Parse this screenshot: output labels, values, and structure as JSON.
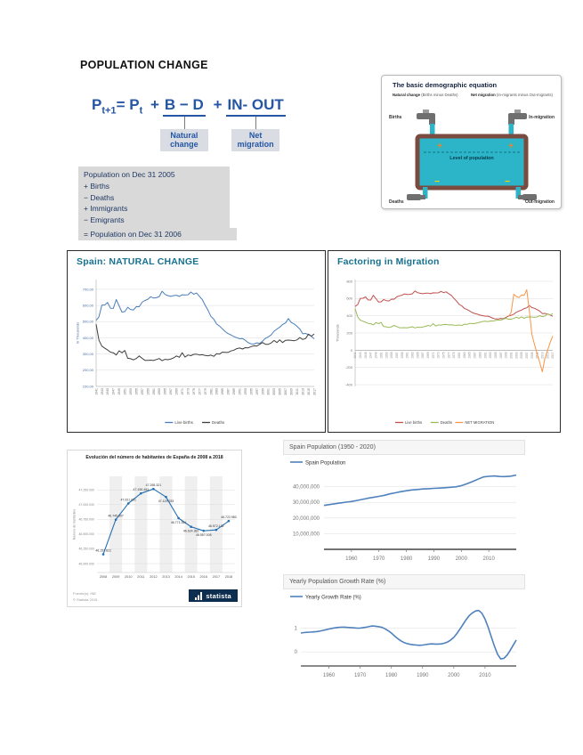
{
  "page": {
    "title": "POPULATION CHANGE"
  },
  "colors": {
    "formula_blue": "#2456a4",
    "box_bg": "#d9d9d9",
    "box_text": "#1f3864",
    "panel_title_teal": "#17718f",
    "water_cyan": "#2cb5c8",
    "tub_brown": "#7b4b40",
    "plus_orange": "#f5821f",
    "minus_yellow": "#ffd800",
    "statista_navy": "#0d2e4e"
  },
  "formula": {
    "p1": "P",
    "sub1": "t+1",
    "eq": "= P",
    "sub2": "t",
    "plus1": "+",
    "bd": "B − D",
    "plus2": "+",
    "inout": "IN- OUT",
    "callout_natural": "Natural change",
    "callout_net": "Net migration"
  },
  "accounting": {
    "lines": [
      "Population on Dec 31 2005",
      "+ Births",
      "− Deaths",
      "+ Immigrants",
      "− Emigrants"
    ],
    "result": "= Population on Dec 31 2006"
  },
  "equation_panel": {
    "title": "The basic demographic equation",
    "natural_bold": "Natural change",
    "natural_rest": "(Births minus Deaths)",
    "net_bold": "Net migration",
    "net_rest": "(In-migrants minus Out-migrants)",
    "births": "Births",
    "in_migration": "In-migration",
    "deaths": "Deaths",
    "out_migration": "Out-migration",
    "level": "Level of population",
    "plus": "+",
    "minus": "−"
  },
  "chart_data": [
    {
      "id": "spain-natural-change",
      "type": "line",
      "title": "Spain: NATURAL CHANGE",
      "ylabel": "In Thousands",
      "x_start": 1941,
      "xtick_start": 1941,
      "xtick_end": 2017,
      "xtick_step": 2,
      "ylim": [
        100,
        760
      ],
      "ytick_values": [
        700,
        600,
        500,
        400,
        300,
        200,
        100
      ],
      "ytick_labels": [
        "700,00",
        "600,00",
        "500,00",
        "400,00",
        "300,00",
        "200,00",
        "100,00"
      ],
      "series": [
        {
          "name": "Live births",
          "color": "#4a7ebb",
          "values": [
            508,
            530,
            602,
            603,
            618,
            583,
            582,
            637,
            598,
            559,
            562,
            589,
            575,
            572,
            593,
            592,
            620,
            631,
            638,
            654,
            646,
            648,
            655,
            688,
            668,
            661,
            656,
            661,
            663,
            656,
            666,
            665,
            666,
            683,
            669,
            677,
            656,
            636,
            601,
            571,
            533,
            515,
            485,
            473,
            456,
            438,
            426,
            418,
            408,
            401,
            395,
            396,
            385,
            370,
            363,
            362,
            369,
            365,
            380,
            397,
            406,
            418,
            441,
            454,
            466,
            483,
            492,
            519,
            495,
            486,
            471,
            454,
            425,
            427,
            420,
            410,
            393
          ]
        },
        {
          "name": "Deaths",
          "color": "#3f3f3f",
          "values": [
            484,
            385,
            349,
            336,
            325,
            312,
            308,
            294,
            320,
            308,
            322,
            274,
            271,
            264,
            272,
            288,
            274,
            261,
            261,
            262,
            260,
            266,
            272,
            259,
            267,
            265,
            269,
            276,
            288,
            280,
            308,
            281,
            294,
            290,
            298,
            299,
            294,
            296,
            291,
            289,
            293,
            286,
            302,
            299,
            312,
            310,
            310,
            319,
            324,
            333,
            337,
            331,
            339,
            338,
            346,
            351,
            349,
            360,
            371,
            360,
            360,
            368,
            384,
            371,
            387,
            371,
            385,
            386,
            385,
            382,
            387,
            402,
            390,
            396,
            423,
            410,
            424
          ]
        }
      ]
    },
    {
      "id": "factoring-migration",
      "type": "line",
      "title": "Factoring in Migration",
      "ylabel": "Thousands",
      "x_start": 1941,
      "xtick_start": 1941,
      "xtick_end": 2017,
      "xtick_step": 2,
      "ylim": [
        -420,
        820
      ],
      "ytick_values": [
        800,
        600,
        400,
        200,
        0,
        -200,
        -400
      ],
      "ytick_labels": [
        "800",
        "600",
        "400",
        "200",
        "0",
        "-200",
        "-400"
      ],
      "series": [
        {
          "name": "Live births",
          "color": "#c0504d",
          "values": [
            508,
            530,
            602,
            603,
            618,
            583,
            582,
            637,
            598,
            559,
            562,
            589,
            575,
            572,
            593,
            592,
            620,
            631,
            638,
            654,
            646,
            648,
            655,
            688,
            668,
            661,
            656,
            661,
            663,
            656,
            666,
            665,
            666,
            683,
            669,
            677,
            656,
            636,
            601,
            571,
            533,
            515,
            485,
            473,
            456,
            438,
            426,
            418,
            408,
            401,
            395,
            396,
            385,
            370,
            363,
            362,
            369,
            365,
            380,
            397,
            406,
            418,
            441,
            454,
            466,
            483,
            492,
            519,
            495,
            486,
            471,
            454,
            425,
            427,
            420,
            410,
            393
          ]
        },
        {
          "name": "Deaths",
          "color": "#9bbb59",
          "values": [
            484,
            385,
            349,
            336,
            325,
            312,
            308,
            294,
            320,
            308,
            322,
            274,
            271,
            264,
            272,
            288,
            274,
            261,
            261,
            262,
            260,
            266,
            272,
            259,
            267,
            265,
            269,
            276,
            288,
            280,
            308,
            281,
            294,
            290,
            298,
            299,
            294,
            296,
            291,
            289,
            293,
            286,
            302,
            299,
            312,
            310,
            310,
            319,
            324,
            333,
            337,
            331,
            339,
            338,
            346,
            351,
            349,
            360,
            371,
            360,
            360,
            368,
            384,
            371,
            387,
            371,
            385,
            386,
            385,
            382,
            387,
            402,
            390,
            396,
            423,
            410,
            424
          ]
        },
        {
          "name": "NET MIGRATION",
          "color": "#f79646",
          "x": [
            2000,
            2001,
            2002,
            2003,
            2004,
            2005,
            2006,
            2007,
            2008,
            2009,
            2010,
            2011,
            2012,
            2013,
            2014,
            2015,
            2016,
            2017
          ],
          "values": [
            390,
            441,
            649,
            625,
            610,
            641,
            636,
            702,
            460,
            181,
            63,
            -42,
            -142,
            -251,
            -95,
            -2,
            89,
            165
          ]
        }
      ]
    },
    {
      "id": "statista-population",
      "type": "line",
      "title": "Evolución del número de habitantes de España de 2008 a 2018",
      "ylabel": "Número de habitantes",
      "categories": [
        "2008",
        "2009",
        "2010",
        "2011",
        "2012",
        "2013",
        "2014",
        "2015",
        "2016",
        "2017",
        "2018"
      ],
      "values": [
        46157822,
        46745807,
        47021031,
        47190493,
        47265321,
        47129783,
        46771341,
        46624382,
        46557008,
        46572132,
        46722980
      ],
      "point_labels": [
        "46.157.822",
        "46.745.807",
        "47.021.031",
        "47.190.493",
        "47.265.321",
        "47.129.783",
        "46.771.341",
        "46.624.382",
        "46.557.008",
        "46.572.132",
        "46.722.980"
      ],
      "line_color": "#2470b3",
      "ylim": [
        45850000,
        47480000
      ],
      "ytick_values": [
        47250000,
        47000000,
        46750000,
        46500000,
        46250000,
        46000000
      ],
      "ytick_labels": [
        "47.250.000",
        "47.000.000",
        "46.750.000",
        "46.500.000",
        "46.250.000",
        "46.000.000"
      ],
      "source": "Fuente(s): INE",
      "copyright": "© Statista 2019",
      "brand": "statista"
    },
    {
      "id": "spain-population",
      "type": "line",
      "title": "Spain Population (1950 - 2020)",
      "legend": "Spain Population",
      "line_color": "#4f81bd",
      "x_start": 1950,
      "x_step": 2,
      "values_millions": [
        28.0,
        28.6,
        29.1,
        29.6,
        30.1,
        30.5,
        31.2,
        31.9,
        32.6,
        33.2,
        33.8,
        34.5,
        35.4,
        36.1,
        36.8,
        37.4,
        37.9,
        38.2,
        38.5,
        38.7,
        38.9,
        39.1,
        39.3,
        39.6,
        39.9,
        40.6,
        41.8,
        43.2,
        44.7,
        46.2,
        46.6,
        46.8,
        46.5,
        46.4,
        46.7,
        47.4
      ],
      "ylim": [
        0,
        50
      ],
      "ytick_values": [
        10,
        20,
        30,
        40
      ],
      "ytick_labels": [
        "10,000,000",
        "20,000,000",
        "30,000,000",
        "40,000,000"
      ],
      "xticks": [
        1960,
        1970,
        1980,
        1990,
        2000,
        2010
      ]
    },
    {
      "id": "growth-rate",
      "type": "line",
      "title": "Yearly Population Growth Rate (%)",
      "legend": "Yearly Growth Rate (%)",
      "line_color": "#4f81bd",
      "x_start": 1951,
      "x_step": 1,
      "values": [
        0.8,
        0.82,
        0.83,
        0.84,
        0.85,
        0.86,
        0.88,
        0.91,
        0.94,
        0.97,
        1.0,
        1.02,
        1.04,
        1.05,
        1.05,
        1.04,
        1.03,
        1.02,
        1.01,
        1.01,
        1.03,
        1.05,
        1.08,
        1.1,
        1.09,
        1.07,
        1.04,
        0.98,
        0.9,
        0.8,
        0.68,
        0.57,
        0.47,
        0.4,
        0.35,
        0.32,
        0.3,
        0.29,
        0.28,
        0.29,
        0.31,
        0.33,
        0.34,
        0.33,
        0.33,
        0.34,
        0.37,
        0.42,
        0.5,
        0.62,
        0.78,
        0.98,
        1.18,
        1.38,
        1.55,
        1.66,
        1.74,
        1.76,
        1.64,
        1.4,
        1.05,
        0.65,
        0.25,
        -0.1,
        -0.3,
        -0.28,
        -0.15,
        0.05,
        0.28,
        0.5
      ],
      "ylim": [
        -0.6,
        2.05
      ],
      "ytick_values": [
        0,
        1
      ],
      "ytick_labels": [
        "0",
        "1"
      ],
      "xticks": [
        1960,
        1970,
        1980,
        1990,
        2000,
        2010
      ]
    }
  ]
}
